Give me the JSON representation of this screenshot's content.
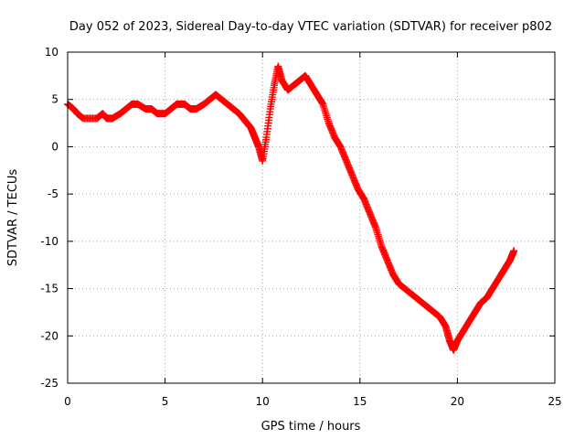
{
  "chart_data": {
    "type": "scatter",
    "title": "Day 052 of 2023, Sidereal Day-to-day VTEC variation (SDTVAR) for receiver p802",
    "xlabel": "GPS time / hours",
    "ylabel": "SDTVAR / TECUs",
    "xlim": [
      0,
      25
    ],
    "ylim": [
      -25,
      10
    ],
    "xticks": [
      0,
      5,
      10,
      15,
      20,
      25
    ],
    "yticks": [
      -25,
      -20,
      -15,
      -10,
      -5,
      0,
      5,
      10
    ],
    "grid": true,
    "marker": "+",
    "series": [
      {
        "name": "SDTVAR",
        "color": "#ff0000",
        "x": [
          0.0,
          0.3,
          0.5,
          0.8,
          1.5,
          1.8,
          2.0,
          2.3,
          2.7,
          3.0,
          3.3,
          3.6,
          4.0,
          4.3,
          4.6,
          5.0,
          5.3,
          5.6,
          6.0,
          6.3,
          6.6,
          7.0,
          7.3,
          7.6,
          7.9,
          8.2,
          8.5,
          8.8,
          9.0,
          9.2,
          9.4,
          9.6,
          9.8,
          10.0,
          10.2,
          10.4,
          10.6,
          10.8,
          11.0,
          11.3,
          11.6,
          11.9,
          12.2,
          12.5,
          12.8,
          13.1,
          13.4,
          13.7,
          14.0,
          14.3,
          14.6,
          14.9,
          15.2,
          15.5,
          15.8,
          16.1,
          16.4,
          16.7,
          17.0,
          17.3,
          17.6,
          17.9,
          18.2,
          18.5,
          18.8,
          19.1,
          19.4,
          19.6,
          19.8,
          20.0,
          20.3,
          20.6,
          20.9,
          21.2,
          21.5,
          21.8,
          22.1,
          22.4,
          22.7,
          22.9
        ],
        "y": [
          4.5,
          4.0,
          3.5,
          3.0,
          3.0,
          3.5,
          3.0,
          3.0,
          3.5,
          4.0,
          4.5,
          4.5,
          4.0,
          4.0,
          3.5,
          3.5,
          4.0,
          4.5,
          4.5,
          4.0,
          4.0,
          4.5,
          5.0,
          5.5,
          5.0,
          4.5,
          4.0,
          3.5,
          3.0,
          2.5,
          2.0,
          1.0,
          0.0,
          -1.5,
          1.0,
          4.0,
          6.5,
          8.5,
          7.0,
          6.0,
          6.5,
          7.0,
          7.5,
          6.5,
          5.5,
          4.5,
          2.5,
          1.0,
          0.0,
          -1.5,
          -3.0,
          -4.5,
          -5.5,
          -7.0,
          -8.5,
          -10.5,
          -12.0,
          -13.5,
          -14.5,
          -15.0,
          -15.5,
          -16.0,
          -16.5,
          -17.0,
          -17.5,
          -18.0,
          -19.0,
          -20.5,
          -21.5,
          -20.5,
          -19.5,
          -18.5,
          -17.5,
          -16.5,
          -16.0,
          -15.0,
          -14.0,
          -13.0,
          -12.0,
          -11.0
        ]
      }
    ]
  }
}
